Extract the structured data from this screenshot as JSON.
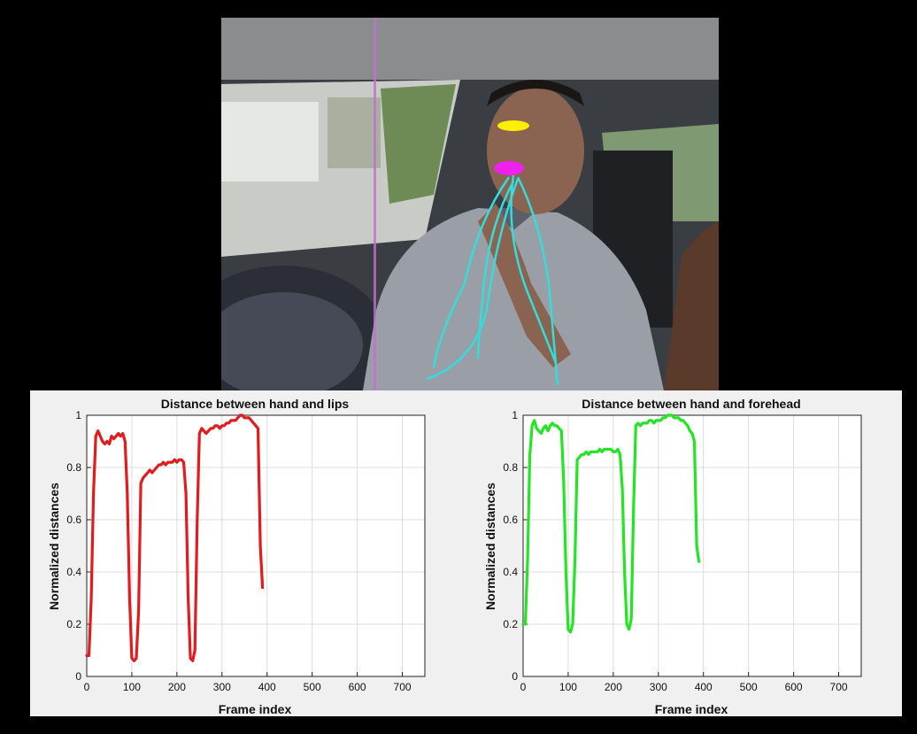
{
  "colors": {
    "lips_series": "#e41a1c",
    "forehead_series": "#22e622",
    "hand_track": "#33dddd",
    "forehead_marker": "#ffee00",
    "lips_marker": "#ee22ee"
  },
  "photo": {
    "description_icon": "in-car-driver-photo"
  },
  "chart_data": [
    {
      "type": "line",
      "title": "Distance between hand and lips",
      "xlabel": "Frame index",
      "ylabel": "Normalized distances",
      "xlim": [
        0,
        750
      ],
      "ylim": [
        0,
        1
      ],
      "xticks": [
        "0",
        "100",
        "200",
        "300",
        "400",
        "500",
        "600",
        "700"
      ],
      "yticks": [
        "0",
        "0.2",
        "0.4",
        "0.6",
        "0.8",
        "1"
      ],
      "grid": true,
      "series": [
        {
          "color": "#e41a1c",
          "x": [
            0,
            5,
            10,
            15,
            20,
            25,
            30,
            35,
            40,
            45,
            50,
            55,
            60,
            65,
            70,
            75,
            80,
            85,
            90,
            95,
            100,
            105,
            110,
            115,
            120,
            125,
            130,
            135,
            140,
            145,
            150,
            155,
            160,
            165,
            170,
            175,
            180,
            185,
            190,
            195,
            200,
            205,
            210,
            215,
            220,
            225,
            230,
            235,
            240,
            245,
            250,
            255,
            260,
            265,
            270,
            275,
            280,
            285,
            290,
            295,
            300,
            305,
            310,
            315,
            320,
            325,
            330,
            335,
            340,
            345,
            350,
            355,
            360,
            365,
            370,
            375,
            380,
            385,
            390
          ],
          "y": [
            0.08,
            0.08,
            0.3,
            0.7,
            0.92,
            0.94,
            0.92,
            0.9,
            0.89,
            0.9,
            0.89,
            0.92,
            0.91,
            0.92,
            0.93,
            0.92,
            0.93,
            0.9,
            0.7,
            0.3,
            0.07,
            0.06,
            0.07,
            0.25,
            0.74,
            0.76,
            0.77,
            0.78,
            0.79,
            0.78,
            0.79,
            0.8,
            0.81,
            0.81,
            0.82,
            0.81,
            0.82,
            0.82,
            0.82,
            0.83,
            0.82,
            0.83,
            0.83,
            0.82,
            0.7,
            0.3,
            0.07,
            0.06,
            0.1,
            0.6,
            0.93,
            0.95,
            0.94,
            0.93,
            0.94,
            0.95,
            0.95,
            0.96,
            0.96,
            0.95,
            0.96,
            0.96,
            0.97,
            0.97,
            0.98,
            0.98,
            0.98,
            0.99,
            1.0,
            1.0,
            0.99,
            0.99,
            0.99,
            0.98,
            0.97,
            0.96,
            0.95,
            0.5,
            0.34
          ]
        }
      ]
    },
    {
      "type": "line",
      "title": "Distance between hand and forehead",
      "xlabel": "Frame index",
      "ylabel": "Normalized distances",
      "xlim": [
        0,
        750
      ],
      "ylim": [
        0,
        1
      ],
      "xticks": [
        "0",
        "100",
        "200",
        "300",
        "400",
        "500",
        "600",
        "700"
      ],
      "yticks": [
        "0",
        "0.2",
        "0.4",
        "0.6",
        "0.8",
        "1"
      ],
      "grid": true,
      "series": [
        {
          "color": "#22e622",
          "x": [
            0,
            5,
            10,
            15,
            20,
            25,
            30,
            35,
            40,
            45,
            50,
            55,
            60,
            65,
            70,
            75,
            80,
            85,
            90,
            95,
            100,
            105,
            110,
            115,
            120,
            125,
            130,
            135,
            140,
            145,
            150,
            155,
            160,
            165,
            170,
            175,
            180,
            185,
            190,
            195,
            200,
            205,
            210,
            215,
            220,
            225,
            230,
            235,
            240,
            245,
            250,
            255,
            260,
            265,
            270,
            275,
            280,
            285,
            290,
            295,
            300,
            305,
            310,
            315,
            320,
            325,
            330,
            335,
            340,
            345,
            350,
            355,
            360,
            365,
            370,
            375,
            380,
            385,
            390
          ],
          "y": [
            0.2,
            0.2,
            0.45,
            0.85,
            0.96,
            0.98,
            0.95,
            0.94,
            0.93,
            0.95,
            0.96,
            0.94,
            0.96,
            0.97,
            0.96,
            0.96,
            0.95,
            0.94,
            0.75,
            0.4,
            0.18,
            0.17,
            0.2,
            0.45,
            0.83,
            0.84,
            0.85,
            0.85,
            0.86,
            0.85,
            0.86,
            0.86,
            0.86,
            0.86,
            0.87,
            0.86,
            0.87,
            0.87,
            0.87,
            0.87,
            0.86,
            0.86,
            0.87,
            0.85,
            0.72,
            0.4,
            0.2,
            0.18,
            0.22,
            0.65,
            0.96,
            0.97,
            0.96,
            0.97,
            0.97,
            0.97,
            0.98,
            0.98,
            0.97,
            0.98,
            0.98,
            0.98,
            0.99,
            0.99,
            1.0,
            1.0,
            1.0,
            0.99,
            0.99,
            0.99,
            0.98,
            0.98,
            0.97,
            0.96,
            0.94,
            0.93,
            0.9,
            0.5,
            0.44
          ]
        }
      ]
    }
  ]
}
